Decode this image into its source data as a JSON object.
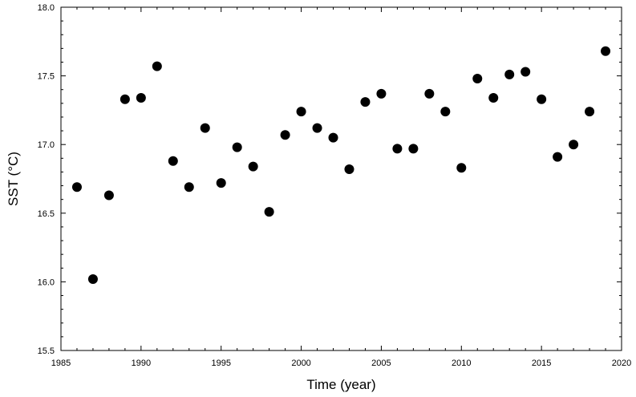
{
  "chart_data": {
    "type": "scatter",
    "title": "",
    "xlabel": "Time (year)",
    "ylabel": "SST (°C)",
    "xlim": [
      1985,
      2020
    ],
    "ylim": [
      15.5,
      18.0
    ],
    "xticks": [
      1985,
      1990,
      1995,
      2000,
      2005,
      2010,
      2015,
      2020
    ],
    "xtick_labels": [
      "1985",
      "1990",
      "1995",
      "2000",
      "2005",
      "2010",
      "2015",
      "2020"
    ],
    "yticks": [
      15.5,
      16.0,
      16.5,
      17.0,
      17.5,
      18.0
    ],
    "ytick_labels": [
      "15.5",
      "16.0",
      "16.5",
      "17.0",
      "17.5",
      "18.0"
    ],
    "grid": false,
    "legend": "none",
    "marker_color": "#000000",
    "series": [
      {
        "x": [
          1986,
          1987,
          1988,
          1989,
          1990,
          1991,
          1992,
          1993,
          1994,
          1995,
          1996,
          1997,
          1998,
          1999,
          2000,
          2001,
          2002,
          2003,
          2004,
          2005,
          2006,
          2007,
          2008,
          2009,
          2010,
          2011,
          2012,
          2013,
          2014,
          2015,
          2016,
          2017,
          2018,
          2019
        ],
        "y": [
          16.69,
          16.02,
          16.63,
          17.33,
          17.34,
          17.57,
          16.88,
          16.69,
          17.12,
          16.72,
          16.98,
          16.84,
          16.51,
          17.07,
          17.24,
          17.12,
          17.05,
          16.82,
          17.31,
          17.37,
          16.97,
          16.97,
          17.37,
          17.24,
          16.83,
          17.48,
          17.34,
          17.51,
          17.53,
          17.33,
          16.91,
          17.0,
          17.24,
          17.68
        ]
      }
    ]
  }
}
